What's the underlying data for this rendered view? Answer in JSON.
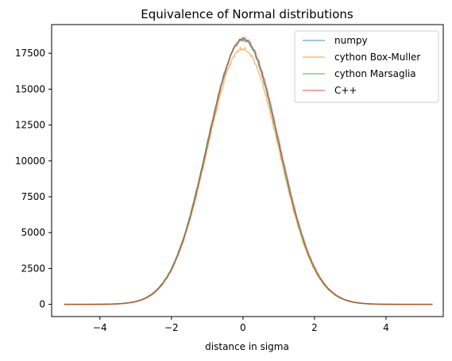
{
  "chart_data": {
    "type": "line",
    "title": "Equivalence of Normal distributions",
    "xlabel": "distance in sigma",
    "ylabel": "",
    "xlim": [
      -5.35,
      5.6
    ],
    "ylim": [
      -850,
      19500
    ],
    "x_ticks": [
      -4,
      -2,
      0,
      2,
      4
    ],
    "x_tick_labels": [
      "−4",
      "−2",
      "0",
      "2",
      "4"
    ],
    "y_ticks": [
      0,
      2500,
      5000,
      7500,
      10000,
      12500,
      15000,
      17500
    ],
    "y_tick_labels": [
      "0",
      "2500",
      "5000",
      "7500",
      "10000",
      "12500",
      "15000",
      "17500"
    ],
    "grid": false,
    "legend_position": "top-right",
    "distribution": {
      "x_range": [
        -5,
        5.3
      ],
      "peak_x": 0,
      "peak_y": 18500
    },
    "series": [
      {
        "name": "numpy",
        "color": "#1f77b4",
        "peak": 18450,
        "shift": 0.0,
        "noise": 110,
        "seed": 11
      },
      {
        "name": "cython Box-Muller",
        "color": "#ff7f0e",
        "peak": 17850,
        "shift": 0.0,
        "noise": 140,
        "seed": 23
      },
      {
        "name": "cython Marsaglia",
        "color": "#2ca02c",
        "peak": 18450,
        "shift": 0.0,
        "noise": 110,
        "seed": 37
      },
      {
        "name": "C++",
        "color": "#d62728",
        "peak": 18500,
        "shift": 0.02,
        "noise": 110,
        "seed": 53
      }
    ]
  }
}
